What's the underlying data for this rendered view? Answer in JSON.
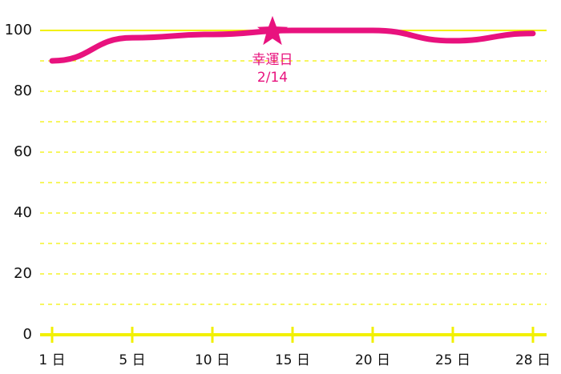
{
  "chart_data": {
    "type": "line",
    "categories": [
      {
        "value": 1,
        "label": "1 日"
      },
      {
        "value": 5,
        "label": "5 日"
      },
      {
        "value": 10,
        "label": "10 日"
      },
      {
        "value": 15,
        "label": "15 日"
      },
      {
        "value": 20,
        "label": "20 日"
      },
      {
        "value": 25,
        "label": "25 日"
      },
      {
        "value": 28,
        "label": "28 日"
      }
    ],
    "series": [
      {
        "color": "#e8127e",
        "values": [
          90,
          97.6,
          98.7,
          100,
          100,
          96.6,
          99
        ]
      }
    ],
    "ylim": [
      0,
      100
    ],
    "yticks": [
      0,
      20,
      40,
      60,
      80,
      100
    ],
    "minor_yticks": [
      10,
      30,
      50,
      70,
      90
    ],
    "grid": true,
    "grid_color": "#f2f000",
    "annotation": {
      "lines": [
        "幸運日",
        "2/14"
      ],
      "value": 99.5,
      "color": "#e8127e"
    }
  }
}
